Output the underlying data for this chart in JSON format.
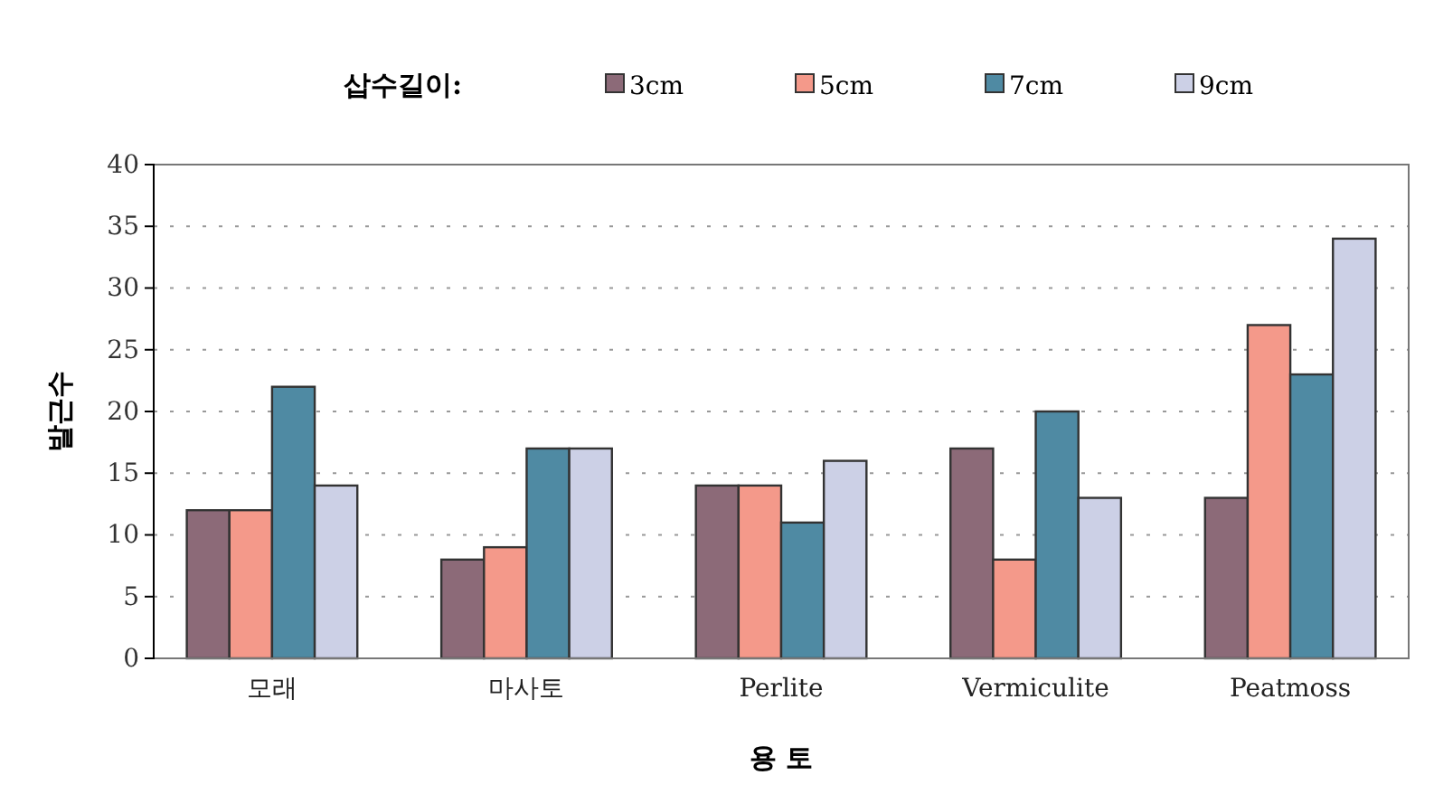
{
  "chart_data": {
    "type": "bar",
    "xlabel": "용 토",
    "ylabel": "발근수",
    "legend_title": "삽수길이:",
    "categories": [
      "모래",
      "마사토",
      "Perlite",
      "Vermiculite",
      "Peatmoss"
    ],
    "series": [
      {
        "name": "3cm",
        "color": "#8c6a78",
        "values": [
          12,
          8,
          14,
          17,
          13
        ]
      },
      {
        "name": "5cm",
        "color": "#f4998a",
        "values": [
          12,
          9,
          14,
          8,
          27
        ]
      },
      {
        "name": "7cm",
        "color": "#4f8aa3",
        "values": [
          22,
          17,
          11,
          20,
          23
        ]
      },
      {
        "name": "9cm",
        "color": "#ccd0e6",
        "values": [
          14,
          17,
          16,
          13,
          34
        ]
      }
    ],
    "ylim": [
      0,
      40
    ],
    "yticks": [
      0,
      5,
      10,
      15,
      20,
      25,
      30,
      35,
      40
    ],
    "grid": "y",
    "legend": "top"
  }
}
